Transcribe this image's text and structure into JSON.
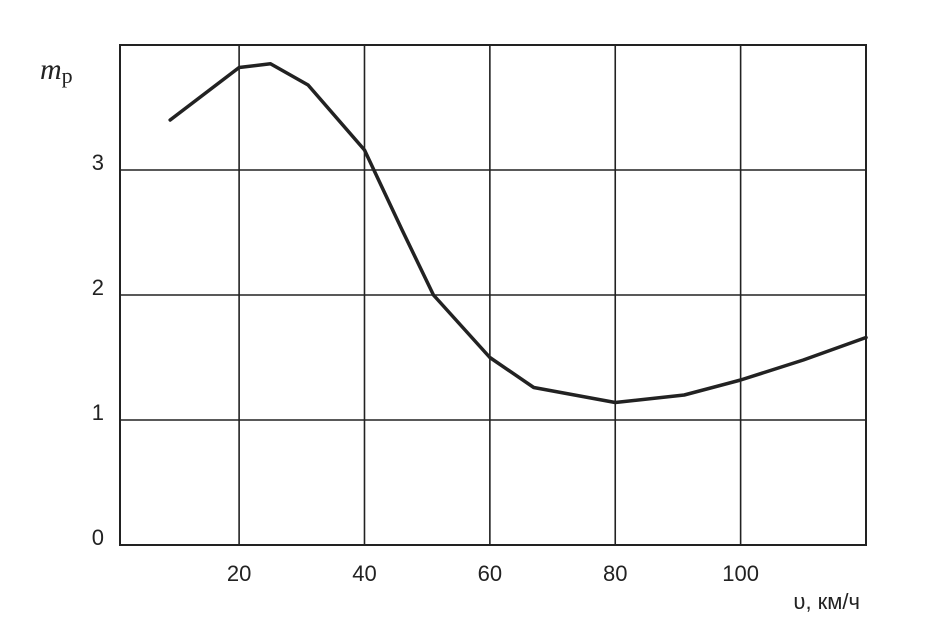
{
  "chart_data": {
    "type": "line",
    "y_label": "m",
    "y_label_sub": "р",
    "x_label": "υ, км/ч",
    "x": [
      9,
      20,
      25,
      31,
      40,
      46,
      51,
      60,
      67,
      80,
      91,
      100,
      110,
      120
    ],
    "series": [
      {
        "color": "#222222",
        "values": [
          3.4,
          3.82,
          3.85,
          3.68,
          3.16,
          2.52,
          2.0,
          1.5,
          1.26,
          1.14,
          1.2,
          1.32,
          1.48,
          1.66
        ]
      }
    ],
    "xlim": [
      1,
      120
    ],
    "ylim": [
      0,
      4
    ],
    "xticks": [
      20,
      40,
      60,
      80,
      100
    ],
    "yticks": [
      0,
      1,
      2,
      3
    ],
    "grid": true
  }
}
